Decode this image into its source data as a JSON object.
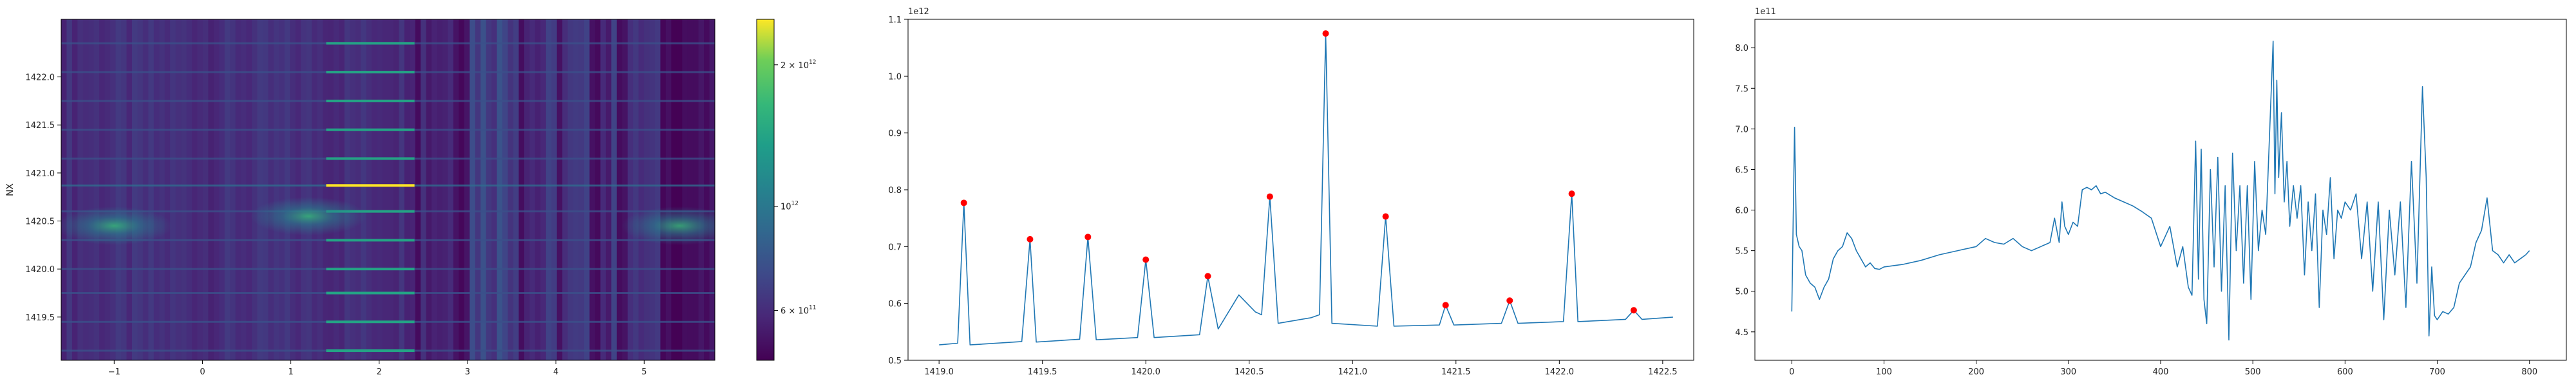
{
  "chart_data": [
    {
      "type": "heatmap",
      "title": "",
      "xlabel": "",
      "ylabel": "NX",
      "xlim": [
        -1.6,
        5.8
      ],
      "ylim": [
        1419.05,
        1422.6
      ],
      "xticks": [
        -1,
        0,
        1,
        2,
        3,
        4,
        5
      ],
      "xtick_labels": [
        "−1",
        "0",
        "1",
        "2",
        "3",
        "4",
        "5"
      ],
      "yticks": [
        1419.5,
        1420.0,
        1420.5,
        1421.0,
        1421.5,
        1422.0
      ],
      "ytick_labels": [
        "1419.5",
        "1420.0",
        "1420.5",
        "1421.0",
        "1421.5",
        "1422.0"
      ],
      "colormap": "viridis",
      "colorbar": {
        "scale": "log",
        "vmin": 470000000000,
        "vmax": 2500000000000,
        "ticks": [
          600000000000,
          1000000000000,
          2000000000000
        ],
        "tick_labels": [
          {
            "base": "6 × 10",
            "exp": "11"
          },
          {
            "base": "10",
            "exp": "12"
          },
          {
            "base": "2 × 10",
            "exp": "12"
          }
        ]
      },
      "bright_rows_nx": [
        1419.15,
        1419.45,
        1419.75,
        1420.0,
        1420.3,
        1420.6,
        1420.87,
        1421.15,
        1421.45,
        1421.75,
        1422.05,
        1422.35
      ],
      "brightest_row_nx": 1420.87,
      "bright_band_x": [
        1.4,
        2.4
      ],
      "blobs": [
        {
          "x": -1.0,
          "nx": 1420.45,
          "value": 800000000000
        },
        {
          "x": 1.2,
          "nx": 1420.55,
          "value": 750000000000
        },
        {
          "x": 5.4,
          "nx": 1420.45,
          "value": 800000000000
        }
      ]
    },
    {
      "type": "line",
      "title": "",
      "xlabel": "",
      "ylabel": "",
      "offset_text": "1e12",
      "xlim": [
        1418.85,
        1422.65
      ],
      "ylim": [
        0.5,
        1.1
      ],
      "xticks": [
        1419.0,
        1419.5,
        1420.0,
        1420.5,
        1421.0,
        1421.5,
        1422.0,
        1422.5
      ],
      "xtick_labels": [
        "1419.0",
        "1419.5",
        "1420.0",
        "1420.5",
        "1421.0",
        "1421.5",
        "1422.0",
        "1422.5"
      ],
      "yticks": [
        0.5,
        0.6,
        0.7,
        0.8,
        0.9,
        1.0,
        1.1
      ],
      "ytick_labels": [
        "0.5",
        "0.6",
        "0.7",
        "0.8",
        "0.9",
        "1.0",
        "1.1"
      ],
      "line_color": "#1f77b4",
      "marker_color": "#ff0000",
      "series": [
        {
          "x": [
            1419.0,
            1419.09,
            1419.12,
            1419.15,
            1419.4,
            1419.44,
            1419.47,
            1419.68,
            1419.72,
            1419.76,
            1419.96,
            1420.0,
            1420.04,
            1420.26,
            1420.3,
            1420.35,
            1420.45,
            1420.53,
            1420.56,
            1420.6,
            1420.64,
            1420.8,
            1420.84,
            1420.87,
            1420.9,
            1421.12,
            1421.16,
            1421.2,
            1421.42,
            1421.45,
            1421.49,
            1421.72,
            1421.76,
            1421.8,
            1422.02,
            1422.06,
            1422.09,
            1422.32,
            1422.36,
            1422.4,
            1422.55
          ],
          "y": [
            0.527,
            0.53,
            0.777,
            0.527,
            0.533,
            0.713,
            0.532,
            0.537,
            0.717,
            0.536,
            0.54,
            0.677,
            0.54,
            0.545,
            0.648,
            0.555,
            0.615,
            0.585,
            0.58,
            0.788,
            0.565,
            0.575,
            0.58,
            1.075,
            0.565,
            0.56,
            0.753,
            0.56,
            0.562,
            0.597,
            0.562,
            0.565,
            0.605,
            0.565,
            0.568,
            0.793,
            0.568,
            0.572,
            0.588,
            0.572,
            0.576
          ]
        }
      ],
      "peaks": {
        "x": [
          1419.12,
          1419.44,
          1419.72,
          1420.0,
          1420.3,
          1420.6,
          1420.87,
          1421.16,
          1421.45,
          1421.76,
          1422.06,
          1422.36
        ],
        "y": [
          0.777,
          0.713,
          0.717,
          0.677,
          0.648,
          0.788,
          1.075,
          0.753,
          0.597,
          0.605,
          0.793,
          0.588
        ]
      }
    },
    {
      "type": "line",
      "title": "",
      "xlabel": "",
      "ylabel": "",
      "offset_text": "1e11",
      "xlim": [
        -40,
        840
      ],
      "ylim": [
        4.15,
        8.35
      ],
      "xticks": [
        0,
        100,
        200,
        300,
        400,
        500,
        600,
        700,
        800
      ],
      "xtick_labels": [
        "0",
        "100",
        "200",
        "300",
        "400",
        "500",
        "600",
        "700",
        "800"
      ],
      "yticks": [
        4.5,
        5.0,
        5.5,
        6.0,
        6.5,
        7.0,
        7.5,
        8.0
      ],
      "ytick_labels": [
        "4.5",
        "5.0",
        "5.5",
        "6.0",
        "6.5",
        "7.0",
        "7.5",
        "8.0"
      ],
      "line_color": "#1f77b4",
      "series": [
        {
          "x": [
            0,
            3,
            5,
            8,
            11,
            15,
            20,
            25,
            30,
            35,
            40,
            45,
            50,
            55,
            60,
            65,
            70,
            75,
            80,
            85,
            90,
            95,
            100,
            120,
            140,
            160,
            180,
            200,
            210,
            220,
            230,
            240,
            250,
            260,
            270,
            280,
            285,
            290,
            293,
            296,
            300,
            305,
            310,
            315,
            320,
            325,
            330,
            335,
            340,
            350,
            360,
            370,
            380,
            390,
            400,
            410,
            418,
            424,
            430,
            434,
            438,
            441,
            444,
            447,
            450,
            454,
            458,
            462,
            466,
            470,
            474,
            478,
            482,
            486,
            490,
            494,
            498,
            502,
            506,
            510,
            514,
            518,
            522,
            524,
            526,
            528,
            531,
            534,
            537,
            540,
            544,
            548,
            552,
            556,
            560,
            564,
            568,
            572,
            576,
            580,
            584,
            588,
            592,
            596,
            600,
            606,
            612,
            618,
            624,
            630,
            636,
            642,
            648,
            654,
            660,
            666,
            672,
            678,
            684,
            688,
            691,
            694,
            697,
            700,
            706,
            712,
            718,
            724,
            730,
            736,
            742,
            748,
            754,
            760,
            766,
            772,
            778,
            784,
            790,
            796,
            800
          ],
          "y": [
            4.75,
            7.02,
            5.7,
            5.55,
            5.5,
            5.2,
            5.1,
            5.05,
            4.9,
            5.05,
            5.15,
            5.4,
            5.5,
            5.55,
            5.72,
            5.65,
            5.5,
            5.4,
            5.3,
            5.35,
            5.28,
            5.27,
            5.3,
            5.33,
            5.38,
            5.45,
            5.5,
            5.55,
            5.65,
            5.6,
            5.58,
            5.65,
            5.55,
            5.5,
            5.55,
            5.6,
            5.9,
            5.6,
            6.1,
            5.8,
            5.7,
            5.85,
            5.8,
            6.25,
            6.28,
            6.25,
            6.3,
            6.2,
            6.22,
            6.15,
            6.1,
            6.05,
            5.98,
            5.9,
            5.55,
            5.8,
            5.3,
            5.55,
            5.05,
            4.95,
            6.85,
            5.15,
            6.75,
            4.9,
            4.6,
            6.5,
            5.3,
            6.65,
            5.0,
            6.3,
            4.4,
            6.7,
            5.5,
            6.3,
            5.1,
            6.3,
            4.9,
            6.6,
            5.5,
            6.0,
            5.7,
            6.9,
            8.08,
            6.2,
            7.6,
            6.4,
            7.2,
            6.1,
            6.6,
            5.8,
            6.3,
            5.9,
            6.3,
            5.2,
            6.1,
            5.5,
            6.2,
            4.8,
            6.0,
            5.7,
            6.4,
            5.4,
            6.0,
            5.9,
            6.1,
            6.0,
            6.2,
            5.4,
            6.1,
            5.0,
            6.1,
            4.65,
            6.0,
            5.2,
            6.1,
            4.8,
            6.6,
            5.1,
            7.52,
            6.4,
            4.45,
            5.3,
            4.7,
            4.65,
            4.75,
            4.72,
            4.8,
            5.1,
            5.2,
            5.3,
            5.6,
            5.75,
            6.15,
            5.5,
            5.45,
            5.35,
            5.45,
            5.35,
            5.4,
            5.45,
            5.5
          ]
        }
      ]
    }
  ]
}
